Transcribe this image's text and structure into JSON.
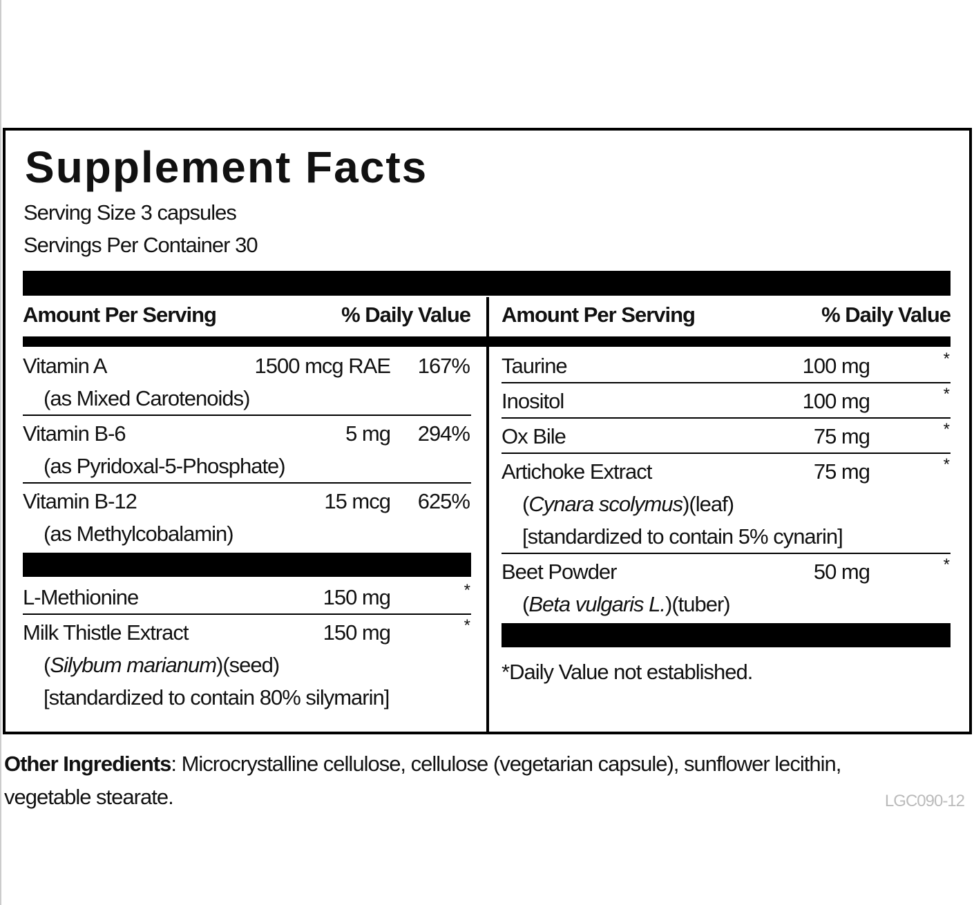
{
  "header": {
    "title": "Supplement Facts",
    "serving_size": "Serving Size 3 capsules",
    "servings_per_container": "Servings Per Container 30"
  },
  "left": {
    "header": {
      "amount": "Amount Per Serving",
      "dv": "% Daily Value"
    },
    "groups": [
      [
        {
          "name": "Vitamin A",
          "amount": "1500 mcg RAE",
          "dv": "167%",
          "details": [
            [
              {
                "text": "(as Mixed Carotenoids)"
              }
            ]
          ]
        },
        {
          "name": "Vitamin B-6",
          "amount": "5 mg",
          "dv": "294%",
          "details": [
            [
              {
                "text": "(as Pyridoxal-5-Phosphate)"
              }
            ]
          ]
        },
        {
          "name": "Vitamin B-12",
          "amount": "15 mcg",
          "dv": "625%",
          "details": [
            [
              {
                "text": "(as Methylcobalamin)"
              }
            ]
          ]
        }
      ],
      [
        {
          "name": "L-Methionine",
          "amount": "150 mg",
          "dv": "*",
          "details": []
        },
        {
          "name": "Milk Thistle Extract",
          "amount": "150 mg",
          "dv": "*",
          "details": [
            [
              {
                "text": "("
              },
              {
                "text": "Silybum marianum",
                "italic": true
              },
              {
                "text": ")(seed)"
              }
            ],
            [
              {
                "text": "[standardized to contain 80% silymarin]"
              }
            ]
          ]
        }
      ]
    ]
  },
  "right": {
    "header": {
      "amount": "Amount Per Serving",
      "dv": "% Daily Value"
    },
    "rows": [
      {
        "name": "Taurine",
        "amount": "100 mg",
        "dv": "*",
        "details": []
      },
      {
        "name": "Inositol",
        "amount": "100 mg",
        "dv": "*",
        "details": []
      },
      {
        "name": "Ox Bile",
        "amount": "75 mg",
        "dv": "*",
        "details": []
      },
      {
        "name": "Artichoke Extract",
        "amount": "75 mg",
        "dv": "*",
        "details": [
          [
            {
              "text": "("
            },
            {
              "text": "Cynara scolymus",
              "italic": true
            },
            {
              "text": ")(leaf)"
            }
          ],
          [
            {
              "text": "[standardized to contain 5% cynarin]"
            }
          ]
        ]
      },
      {
        "name": "Beet Powder",
        "amount": "50 mg",
        "dv": "*",
        "details": [
          [
            {
              "text": "("
            },
            {
              "text": "Beta vulgaris L.",
              "italic": true
            },
            {
              "text": ")(tuber)"
            }
          ]
        ]
      }
    ],
    "footnote": "*Daily Value not established."
  },
  "other_ingredients": {
    "label": "Other Ingredients",
    "text": ": Microcrystalline cellulose, cellulose (vegetarian capsule), sunflower lecithin, vegetable stearate."
  },
  "code": "LGC090-12"
}
